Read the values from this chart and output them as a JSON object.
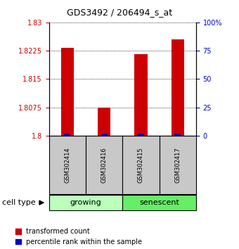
{
  "title": "GDS3492 / 206494_s_at",
  "samples": [
    "GSM302414",
    "GSM302416",
    "GSM302415",
    "GSM302417"
  ],
  "transformed_counts": [
    1.8232,
    1.8075,
    1.8215,
    1.8255
  ],
  "percentile_ranks": [
    2,
    2,
    2,
    2
  ],
  "ylim_left": [
    1.8,
    1.83
  ],
  "yticks_left": [
    1.8,
    1.8075,
    1.815,
    1.8225,
    1.83
  ],
  "ytick_labels_left": [
    "1.8",
    "1.8075",
    "1.815",
    "1.8225",
    "1.83"
  ],
  "ylim_right": [
    0,
    100
  ],
  "yticks_right": [
    0,
    25,
    50,
    75,
    100
  ],
  "ytick_labels_right": [
    "0",
    "25",
    "50",
    "75",
    "100%"
  ],
  "groups": [
    {
      "label": "growing",
      "samples": [
        0,
        1
      ],
      "color": "#bbffbb"
    },
    {
      "label": "senescent",
      "samples": [
        2,
        3
      ],
      "color": "#66ee66"
    }
  ],
  "bar_color_red": "#cc0000",
  "bar_color_blue": "#0000cc",
  "bar_width": 0.35,
  "label_bar_red": "transformed count",
  "label_bar_blue": "percentile rank within the sample",
  "cell_type_label": "cell type",
  "background_sample_box": "#c8c8c8",
  "left_tick_color": "#cc0000",
  "right_tick_color": "#0000cc",
  "title_fontsize": 9,
  "tick_fontsize": 7,
  "sample_fontsize": 6,
  "group_fontsize": 8,
  "legend_fontsize": 7
}
